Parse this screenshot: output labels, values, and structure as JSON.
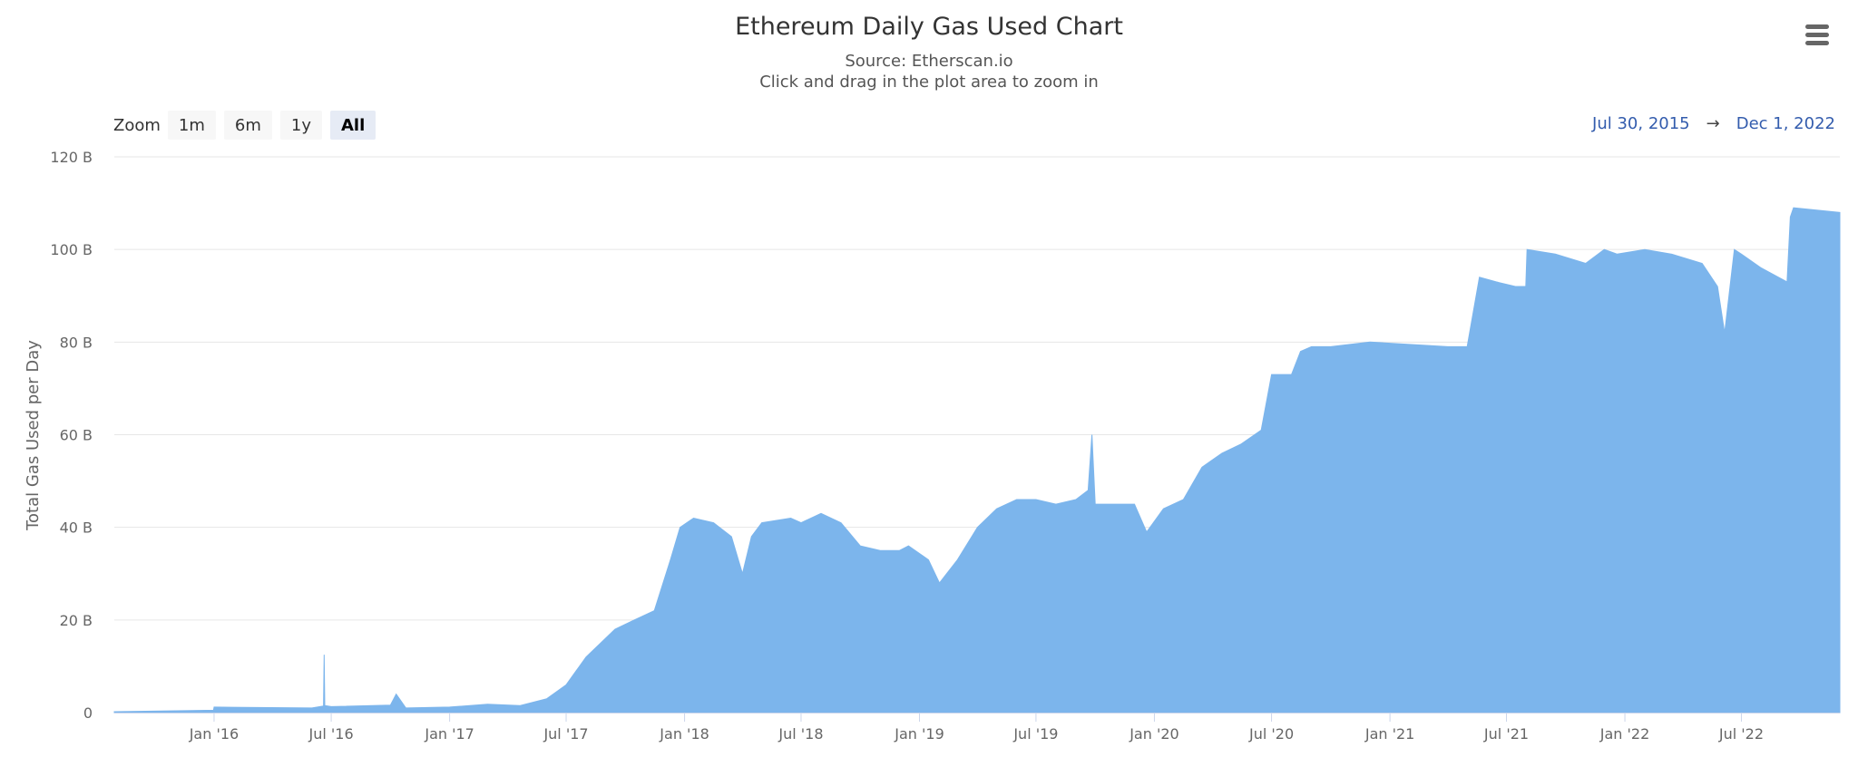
{
  "chart_data": {
    "type": "area",
    "title": "Ethereum Daily Gas Used Chart",
    "subtitle": "Source: Etherscan.io",
    "ylabel": "Total Gas Used per Day",
    "xlabel": "",
    "ylim": [
      0,
      120
    ],
    "y_unit": "B",
    "y_ticks": [
      "0",
      "20 B",
      "40 B",
      "60 B",
      "80 B",
      "100 B",
      "120 B"
    ],
    "x_ticks": [
      {
        "label": "Jan '16",
        "date": "2016-01-01"
      },
      {
        "label": "Jul '16",
        "date": "2016-07-01"
      },
      {
        "label": "Jan '17",
        "date": "2017-01-01"
      },
      {
        "label": "Jul '17",
        "date": "2017-07-01"
      },
      {
        "label": "Jan '18",
        "date": "2018-01-01"
      },
      {
        "label": "Jul '18",
        "date": "2018-07-01"
      },
      {
        "label": "Jan '19",
        "date": "2019-01-01"
      },
      {
        "label": "Jul '19",
        "date": "2019-07-01"
      },
      {
        "label": "Jan '20",
        "date": "2020-01-01"
      },
      {
        "label": "Jul '20",
        "date": "2020-07-01"
      },
      {
        "label": "Jan '21",
        "date": "2021-01-01"
      },
      {
        "label": "Jul '21",
        "date": "2021-07-01"
      },
      {
        "label": "Jan '22",
        "date": "2022-01-01"
      },
      {
        "label": "Jul '22",
        "date": "2022-07-01"
      }
    ],
    "x_range": [
      "2015-07-30",
      "2022-12-01"
    ],
    "grid": true,
    "legend": "none",
    "color": "#7cb5ec",
    "series": [
      {
        "x": [
          "2015-07-30",
          "2015-12-31",
          "2016-01-01",
          "2016-06-01",
          "2016-06-19",
          "2016-06-20",
          "2016-06-21",
          "2016-07-01",
          "2016-10-01",
          "2016-10-10",
          "2016-10-25",
          "2017-01-01",
          "2017-03-01",
          "2017-04-20",
          "2017-06-01",
          "2017-07-01",
          "2017-08-01",
          "2017-09-15",
          "2017-10-15",
          "2017-11-15",
          "2017-12-10",
          "2017-12-25",
          "2018-01-15",
          "2018-02-15",
          "2018-03-15",
          "2018-04-01",
          "2018-04-15",
          "2018-05-01",
          "2018-06-15",
          "2018-07-01",
          "2018-08-01",
          "2018-09-01",
          "2018-10-01",
          "2018-11-01",
          "2018-12-01",
          "2018-12-15",
          "2019-01-15",
          "2019-02-01",
          "2019-03-01",
          "2019-04-01",
          "2019-05-01",
          "2019-06-01",
          "2019-07-01",
          "2019-08-01",
          "2019-09-01",
          "2019-09-20",
          "2019-09-26",
          "2019-10-01",
          "2019-11-01",
          "2019-12-01",
          "2019-12-20",
          "2020-01-15",
          "2020-02-15",
          "2020-03-15",
          "2020-04-15",
          "2020-05-15",
          "2020-06-15",
          "2020-07-01",
          "2020-08-01",
          "2020-08-15",
          "2020-09-01",
          "2020-10-01",
          "2020-12-01",
          "2021-04-01",
          "2021-05-01",
          "2021-05-20",
          "2021-06-15",
          "2021-07-15",
          "2021-07-31",
          "2021-08-02",
          "2021-09-15",
          "2021-11-01",
          "2021-11-30",
          "2021-12-20",
          "2022-02-01",
          "2022-03-15",
          "2022-05-01",
          "2022-05-25",
          "2022-06-05",
          "2022-06-20",
          "2022-07-01",
          "2022-08-01",
          "2022-09-10",
          "2022-09-15",
          "2022-09-20",
          "2022-12-01"
        ],
        "y": [
          0.2,
          0.5,
          1.2,
          1.0,
          1.4,
          12.5,
          1.5,
          1.3,
          1.6,
          4.0,
          1.0,
          1.2,
          1.8,
          1.5,
          3.0,
          6.0,
          12.0,
          18.0,
          20.0,
          22.0,
          33.0,
          40.0,
          42.0,
          41.0,
          38.0,
          30.0,
          38.0,
          41.0,
          42.0,
          41.0,
          43.0,
          41.0,
          36.0,
          35.0,
          35.0,
          36.0,
          33.0,
          28.0,
          33.0,
          40.0,
          44.0,
          46.0,
          46.0,
          45.0,
          46.0,
          48.0,
          60.0,
          45.0,
          45.0,
          45.0,
          39.0,
          44.0,
          46.0,
          53.0,
          56.0,
          58.0,
          61.0,
          73.0,
          73.0,
          78.0,
          79.0,
          79.0,
          80.0,
          79.0,
          79.0,
          94.0,
          93.0,
          92.0,
          92.0,
          100.0,
          99.0,
          97.0,
          100.0,
          99.0,
          100.0,
          99.0,
          97.0,
          92.0,
          82.0,
          100.0,
          99.0,
          96.0,
          93.0,
          107.0,
          109.0,
          108.0
        ]
      }
    ]
  },
  "controls": {
    "zoom_label": "Zoom",
    "zoom_buttons": [
      {
        "label": "1m"
      },
      {
        "label": "6m"
      },
      {
        "label": "1y"
      },
      {
        "label": "All",
        "active": true
      }
    ],
    "range_from": "Jul 30, 2015",
    "range_arrow": "→",
    "range_to": "Dec 1, 2022",
    "menu_icon": "hamburger-menu-icon"
  },
  "instructions": "Click and drag in the plot area to zoom in"
}
